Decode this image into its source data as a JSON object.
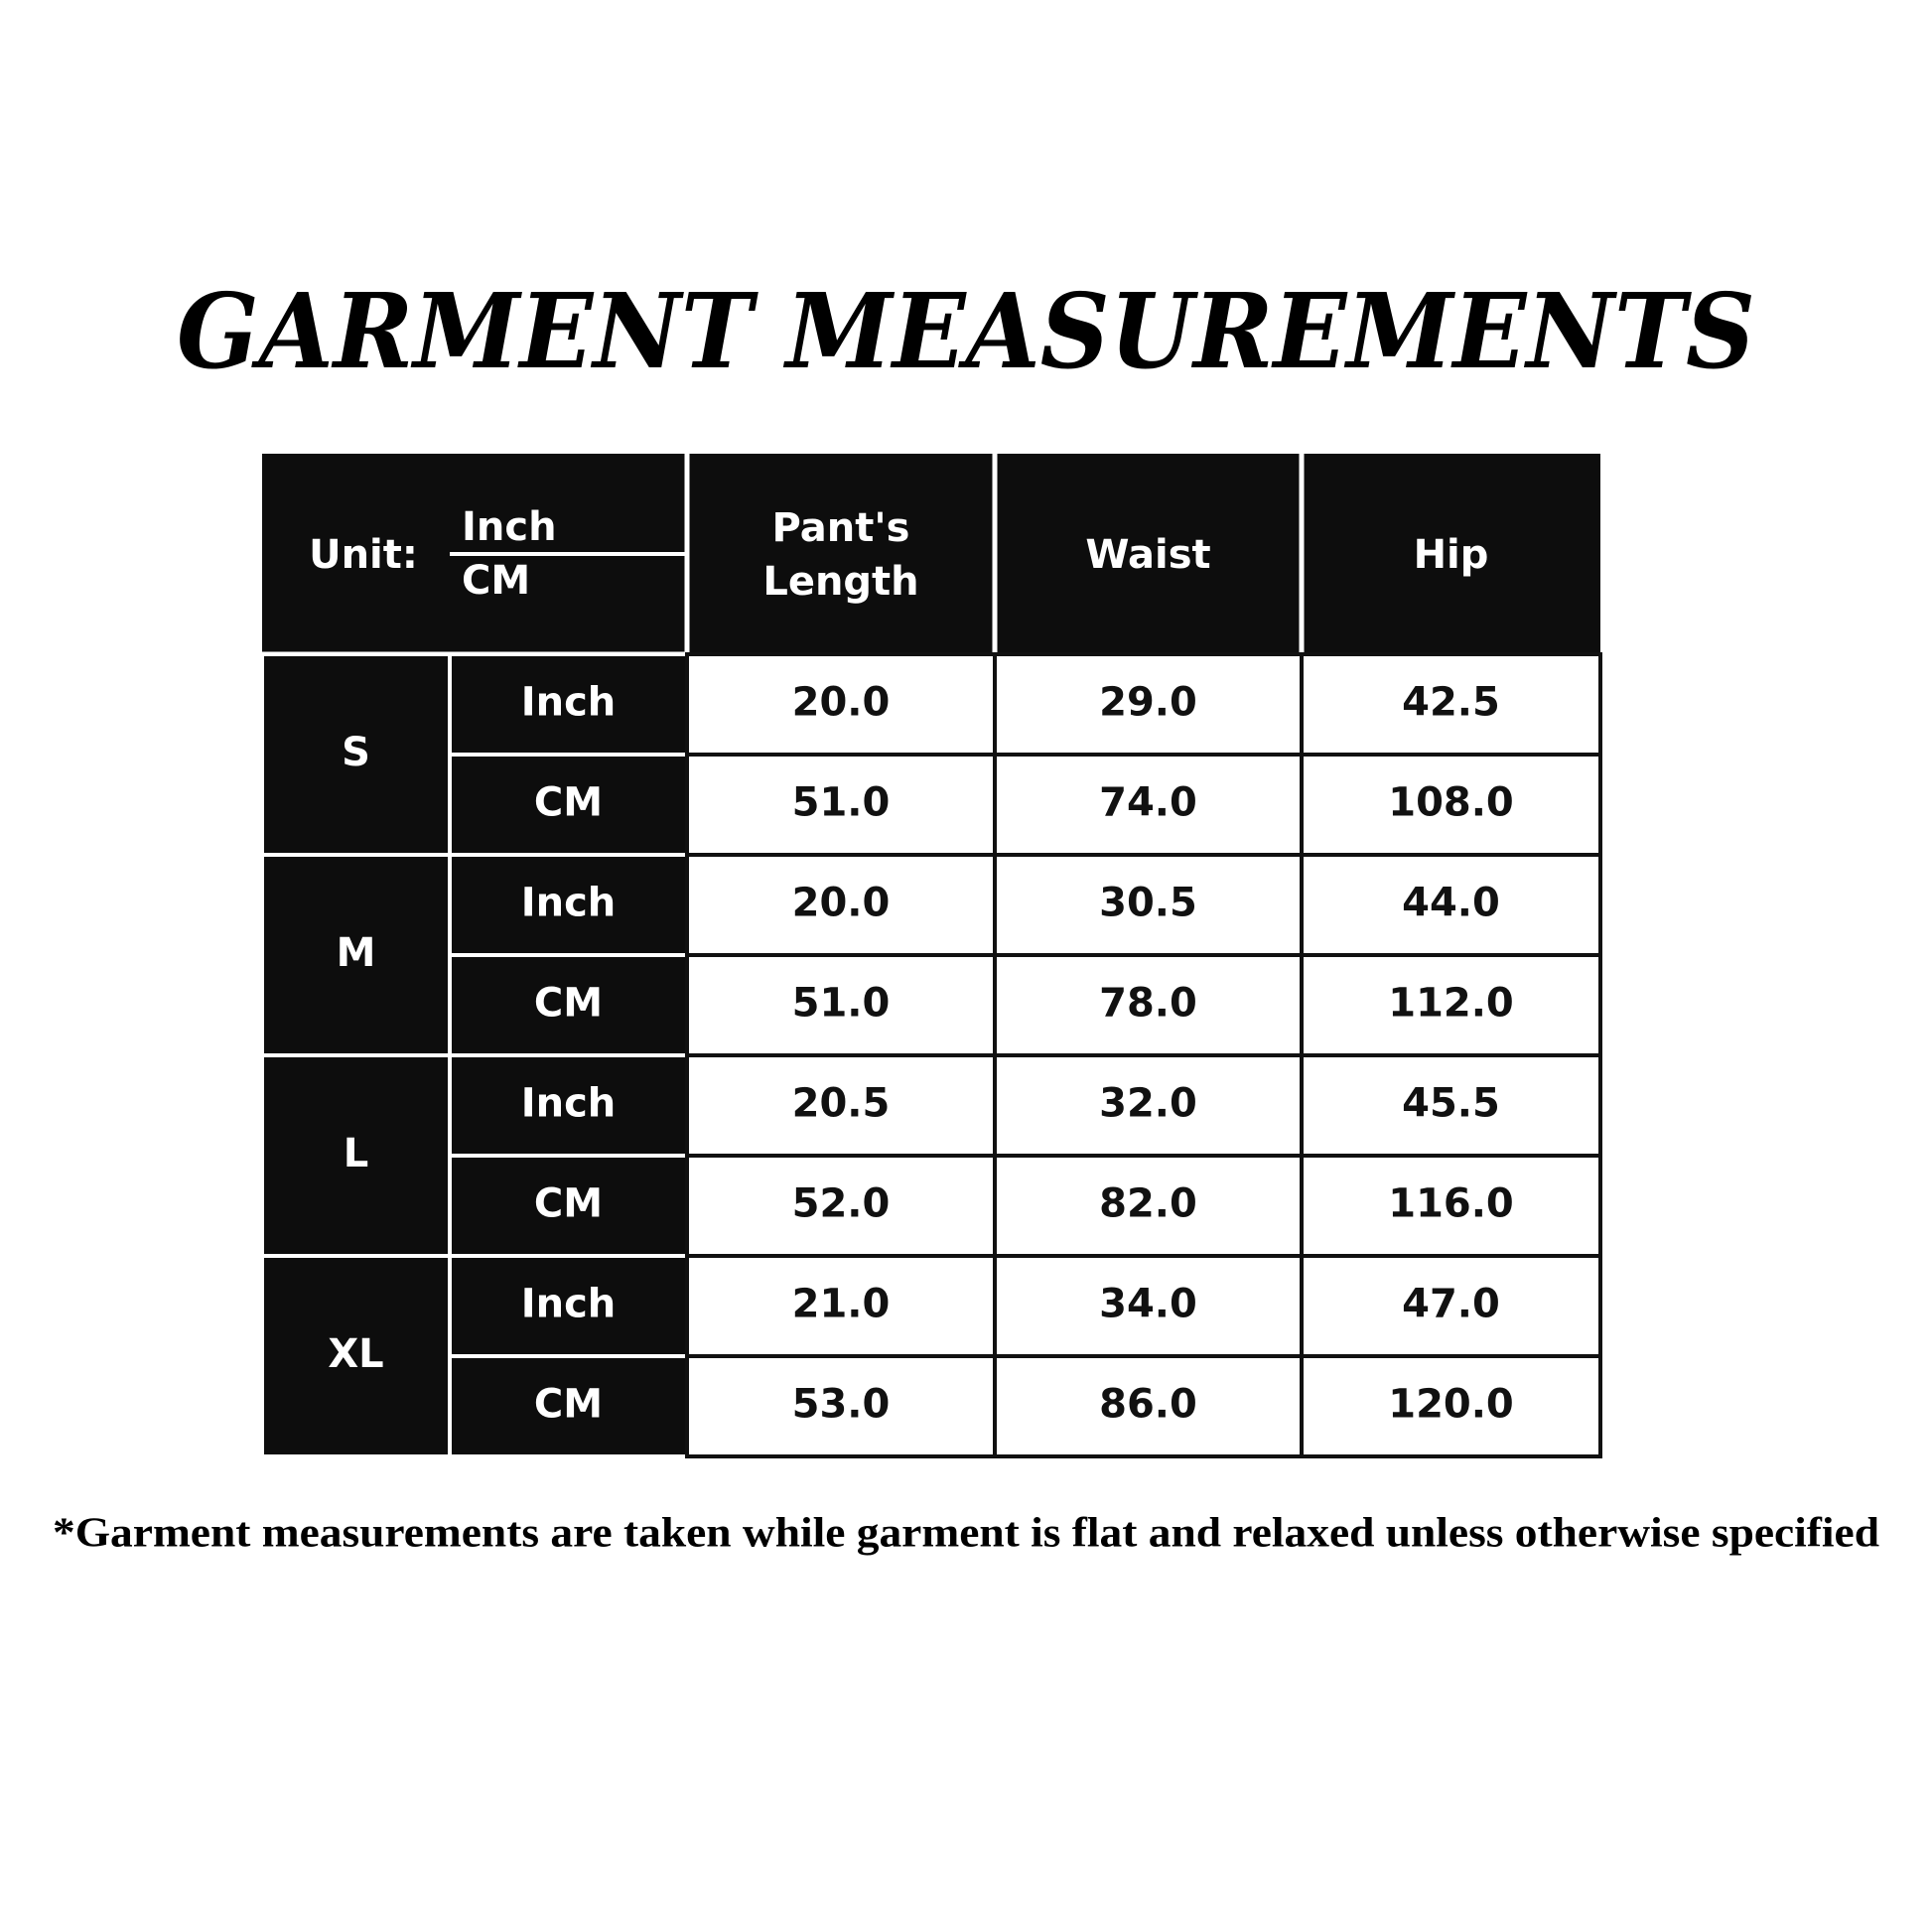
{
  "header": {
    "title": "GARMENT MEASUREMENTS"
  },
  "table": {
    "unit_label": "Unit:",
    "unit_options": [
      "Inch",
      "CM"
    ],
    "columns": [
      "Pant's Length",
      "Waist",
      "Hip"
    ],
    "rows": [
      {
        "size": "S",
        "lines": [
          {
            "unit": "Inch",
            "values": [
              "20.0",
              "29.0",
              "42.5"
            ]
          },
          {
            "unit": "CM",
            "values": [
              "51.0",
              "74.0",
              "108.0"
            ]
          }
        ]
      },
      {
        "size": "M",
        "lines": [
          {
            "unit": "Inch",
            "values": [
              "20.0",
              "30.5",
              "44.0"
            ]
          },
          {
            "unit": "CM",
            "values": [
              "51.0",
              "78.0",
              "112.0"
            ]
          }
        ]
      },
      {
        "size": "L",
        "lines": [
          {
            "unit": "Inch",
            "values": [
              "20.5",
              "32.0",
              "45.5"
            ]
          },
          {
            "unit": "CM",
            "values": [
              "52.0",
              "82.0",
              "116.0"
            ]
          }
        ]
      },
      {
        "size": "XL",
        "lines": [
          {
            "unit": "Inch",
            "values": [
              "21.0",
              "34.0",
              "47.0"
            ]
          },
          {
            "unit": "CM",
            "values": [
              "53.0",
              "86.0",
              "120.0"
            ]
          }
        ]
      }
    ]
  },
  "footnote": "*Garment measurements are taken while garment is flat and relaxed unless otherwise specified"
}
